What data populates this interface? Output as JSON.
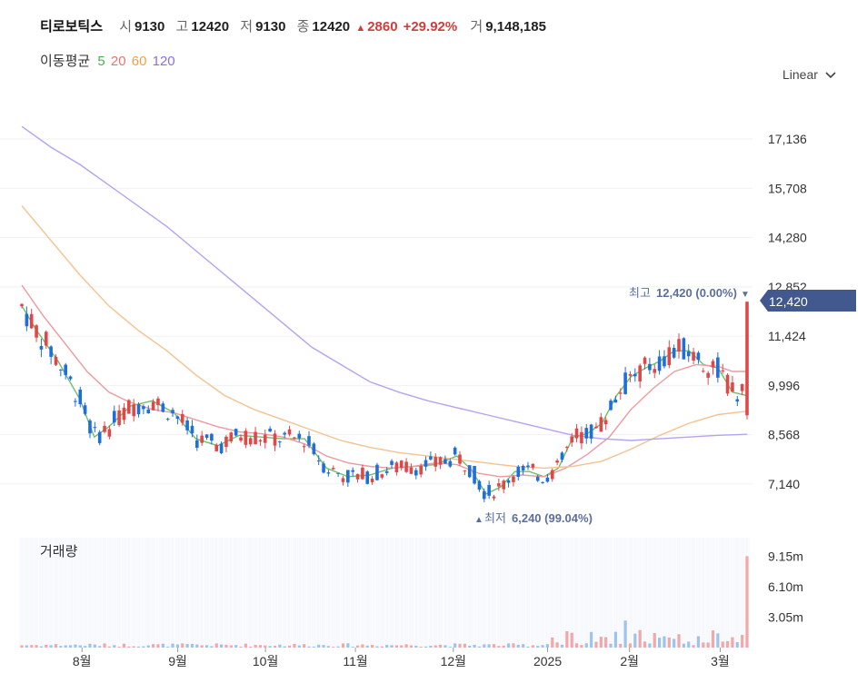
{
  "header": {
    "name": "티로보틱스",
    "open_label": "시",
    "open": "9130",
    "high_label": "고",
    "high": "12420",
    "low_label": "저",
    "low": "9130",
    "close_label": "종",
    "close": "12420",
    "change_arrow": "▲",
    "change": "2860",
    "change_pct": "+29.92%",
    "volume_label": "거",
    "volume": "9,148,185"
  },
  "moving_average": {
    "label": "이동평균",
    "periods": [
      {
        "period": "5",
        "color": "#4caf50"
      },
      {
        "period": "20",
        "color": "#e57373"
      },
      {
        "period": "60",
        "color": "#f0a04b"
      },
      {
        "period": "120",
        "color": "#8e6fd8"
      }
    ]
  },
  "scale_selector": {
    "value": "Linear",
    "icon": "chevron-down-icon"
  },
  "colors": {
    "up": "#e04848",
    "down": "#1e6fd9",
    "price_tag": "#42598f"
  },
  "chart_data": {
    "type": "candlestick",
    "y_ticks": [
      "17,136",
      "15,708",
      "14,280",
      "12,852",
      "11,424",
      "9,996",
      "8,568",
      "7,140"
    ],
    "y_tick_values": [
      17136,
      15708,
      14280,
      12852,
      11424,
      9996,
      8568,
      7140
    ],
    "ylim": [
      5900,
      18400
    ],
    "x_ticks": [
      "8월",
      "9월",
      "10월",
      "11월",
      "12월",
      "2025",
      "2월",
      "3월"
    ],
    "current_price_tag": "12,420",
    "high_annotation": {
      "label": "최고",
      "value": "12,420 (0.00%)",
      "arrow": "▼"
    },
    "low_annotation": {
      "label": "최저",
      "value": "6,240 (99.04%)",
      "arrow": "▲"
    },
    "volume_panel": {
      "title": "거래량",
      "y_ticks": [
        "9.15m",
        "6.10m",
        "3.05m"
      ],
      "y_tick_values": [
        9150000,
        6100000,
        3050000
      ],
      "ylim": [
        0,
        11000000
      ]
    },
    "ma_lines": {
      "ma5": [
        [
          0,
          12300
        ],
        [
          0.02,
          11600
        ],
        [
          0.05,
          10700
        ],
        [
          0.08,
          9600
        ],
        [
          0.1,
          8500
        ],
        [
          0.12,
          8800
        ],
        [
          0.15,
          9400
        ],
        [
          0.18,
          9550
        ],
        [
          0.21,
          9200
        ],
        [
          0.24,
          8450
        ],
        [
          0.27,
          8250
        ],
        [
          0.3,
          8550
        ],
        [
          0.33,
          8500
        ],
        [
          0.36,
          8450
        ],
        [
          0.39,
          8450
        ],
        [
          0.42,
          7600
        ],
        [
          0.45,
          7350
        ],
        [
          0.48,
          7400
        ],
        [
          0.51,
          7600
        ],
        [
          0.54,
          7650
        ],
        [
          0.57,
          7700
        ],
        [
          0.6,
          7950
        ],
        [
          0.62,
          7550
        ],
        [
          0.64,
          6850
        ],
        [
          0.66,
          7050
        ],
        [
          0.68,
          7500
        ],
        [
          0.7,
          7500
        ],
        [
          0.72,
          7350
        ],
        [
          0.74,
          7600
        ],
        [
          0.76,
          8500
        ],
        [
          0.78,
          8600
        ],
        [
          0.8,
          8900
        ],
        [
          0.82,
          9700
        ],
        [
          0.84,
          10250
        ],
        [
          0.86,
          10500
        ],
        [
          0.88,
          10700
        ],
        [
          0.9,
          11000
        ],
        [
          0.92,
          11000
        ],
        [
          0.94,
          10600
        ],
        [
          0.96,
          10500
        ],
        [
          0.98,
          9800
        ],
        [
          1.0,
          9700
        ]
      ],
      "ma20": [
        [
          0,
          12900
        ],
        [
          0.03,
          12000
        ],
        [
          0.06,
          11200
        ],
        [
          0.09,
          10400
        ],
        [
          0.12,
          9800
        ],
        [
          0.15,
          9500
        ],
        [
          0.18,
          9300
        ],
        [
          0.21,
          9200
        ],
        [
          0.24,
          9000
        ],
        [
          0.27,
          8800
        ],
        [
          0.3,
          8650
        ],
        [
          0.33,
          8600
        ],
        [
          0.36,
          8500
        ],
        [
          0.39,
          8300
        ],
        [
          0.42,
          7950
        ],
        [
          0.45,
          7750
        ],
        [
          0.48,
          7650
        ],
        [
          0.51,
          7600
        ],
        [
          0.54,
          7650
        ],
        [
          0.57,
          7750
        ],
        [
          0.6,
          7700
        ],
        [
          0.63,
          7450
        ],
        [
          0.66,
          7350
        ],
        [
          0.69,
          7400
        ],
        [
          0.72,
          7350
        ],
        [
          0.75,
          7600
        ],
        [
          0.78,
          8000
        ],
        [
          0.81,
          8500
        ],
        [
          0.84,
          9300
        ],
        [
          0.87,
          9900
        ],
        [
          0.9,
          10400
        ],
        [
          0.93,
          10600
        ],
        [
          0.96,
          10550
        ],
        [
          0.98,
          10400
        ],
        [
          1.0,
          10400
        ]
      ],
      "ma60": [
        [
          0,
          15200
        ],
        [
          0.04,
          14200
        ],
        [
          0.08,
          13200
        ],
        [
          0.12,
          12300
        ],
        [
          0.16,
          11600
        ],
        [
          0.2,
          11000
        ],
        [
          0.24,
          10300
        ],
        [
          0.28,
          9700
        ],
        [
          0.32,
          9300
        ],
        [
          0.36,
          9000
        ],
        [
          0.4,
          8700
        ],
        [
          0.44,
          8400
        ],
        [
          0.48,
          8200
        ],
        [
          0.52,
          8050
        ],
        [
          0.56,
          7950
        ],
        [
          0.6,
          7850
        ],
        [
          0.64,
          7750
        ],
        [
          0.68,
          7650
        ],
        [
          0.72,
          7600
        ],
        [
          0.76,
          7650
        ],
        [
          0.8,
          7800
        ],
        [
          0.84,
          8150
        ],
        [
          0.88,
          8550
        ],
        [
          0.92,
          8900
        ],
        [
          0.96,
          9150
        ],
        [
          1.0,
          9250
        ]
      ],
      "ma120": [
        [
          0,
          17500
        ],
        [
          0.04,
          16900
        ],
        [
          0.08,
          16400
        ],
        [
          0.12,
          15800
        ],
        [
          0.16,
          15200
        ],
        [
          0.2,
          14600
        ],
        [
          0.24,
          13900
        ],
        [
          0.28,
          13200
        ],
        [
          0.32,
          12500
        ],
        [
          0.36,
          11800
        ],
        [
          0.4,
          11100
        ],
        [
          0.44,
          10600
        ],
        [
          0.48,
          10100
        ],
        [
          0.52,
          9800
        ],
        [
          0.56,
          9550
        ],
        [
          0.6,
          9350
        ],
        [
          0.64,
          9150
        ],
        [
          0.68,
          8950
        ],
        [
          0.72,
          8750
        ],
        [
          0.76,
          8550
        ],
        [
          0.8,
          8450
        ],
        [
          0.84,
          8400
        ],
        [
          0.88,
          8450
        ],
        [
          0.92,
          8500
        ],
        [
          0.96,
          8550
        ],
        [
          1.0,
          8580
        ]
      ]
    }
  }
}
